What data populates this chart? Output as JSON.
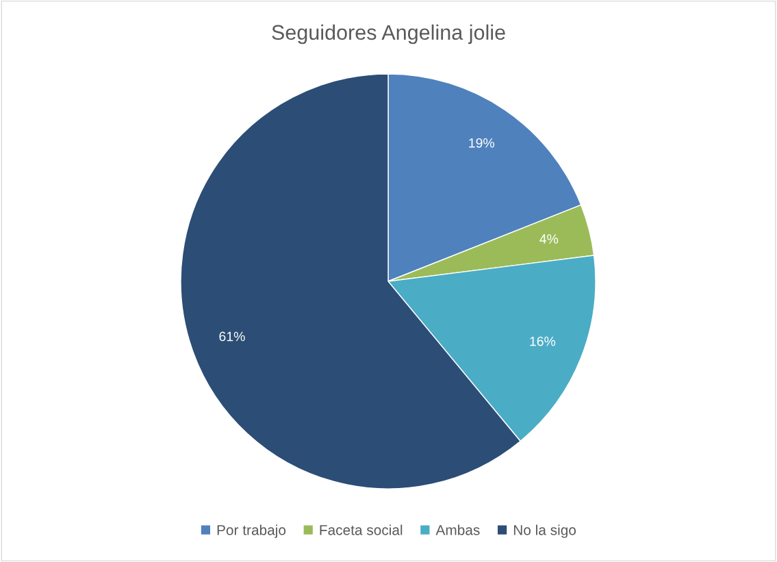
{
  "chart_data": {
    "type": "pie",
    "title": "Seguidores Angelina jolie",
    "categories": [
      "Por trabajo",
      "Faceta social",
      "Ambas",
      "No la sigo"
    ],
    "values": [
      19,
      4,
      16,
      61
    ],
    "colors": [
      "#4f81bd",
      "#9bbb59",
      "#4bacc6",
      "#2c4d75"
    ],
    "value_labels": [
      "19%",
      "4%",
      "16%",
      "61%"
    ],
    "legend": "bottom"
  }
}
